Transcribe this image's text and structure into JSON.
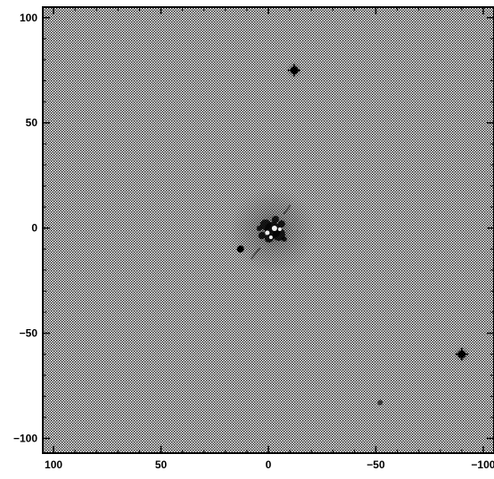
{
  "image": {
    "description_type": "grayscale astronomical image with coordinate axes",
    "background_tone": "#bdbdbd",
    "x_axis": {
      "tick_labels": [
        "100",
        "50",
        "0",
        "−50",
        "−100"
      ],
      "tick_values": [
        100,
        50,
        0,
        -50,
        -100
      ],
      "range": [
        105,
        -105
      ],
      "direction": "decreasing to the right"
    },
    "y_axis": {
      "tick_labels": [
        "100",
        "50",
        "0",
        "−50",
        "−100"
      ],
      "tick_values": [
        100,
        50,
        0,
        -50,
        -100
      ],
      "range": [
        -107,
        105
      ]
    },
    "features": [
      {
        "name": "central-source",
        "x": -2,
        "y": -1,
        "kind": "bright clumpy nucleus with dark knots"
      },
      {
        "name": "dark-star-upper-right",
        "x": -12,
        "y": 75,
        "kind": "point source"
      },
      {
        "name": "dark-star-lower-right",
        "x": -90,
        "y": -60,
        "kind": "point source"
      },
      {
        "name": "dark-knot-left-of-center",
        "x": 13,
        "y": -10,
        "kind": "compact knot"
      },
      {
        "name": "faint-spot-lower",
        "x": -52,
        "y": -83,
        "kind": "faint compact source"
      }
    ]
  }
}
